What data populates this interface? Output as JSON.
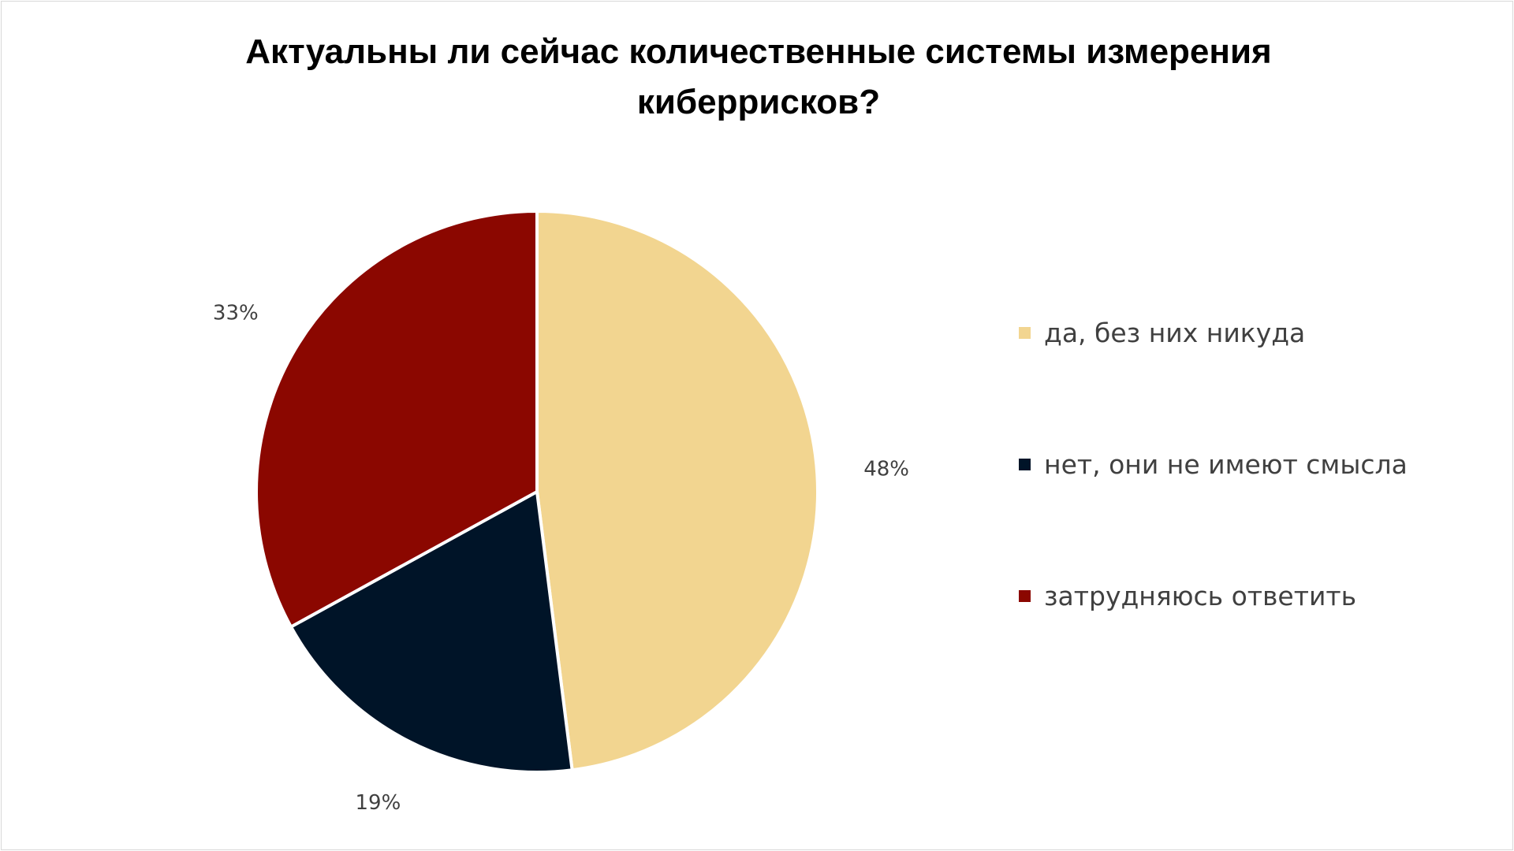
{
  "chart_data": {
    "type": "pie",
    "title": "Актуальны ли сейчас количественные системы измерения киберрисков?",
    "categories": [
      "да, без них никуда",
      "нет, они не имеют смысла",
      "затрудняюсь ответить"
    ],
    "values": [
      48,
      19,
      33
    ],
    "value_labels": [
      "48%",
      "19%",
      "33%"
    ],
    "colors": [
      "#f2d590",
      "#001428",
      "#8b0700"
    ],
    "legend_position": "right"
  }
}
